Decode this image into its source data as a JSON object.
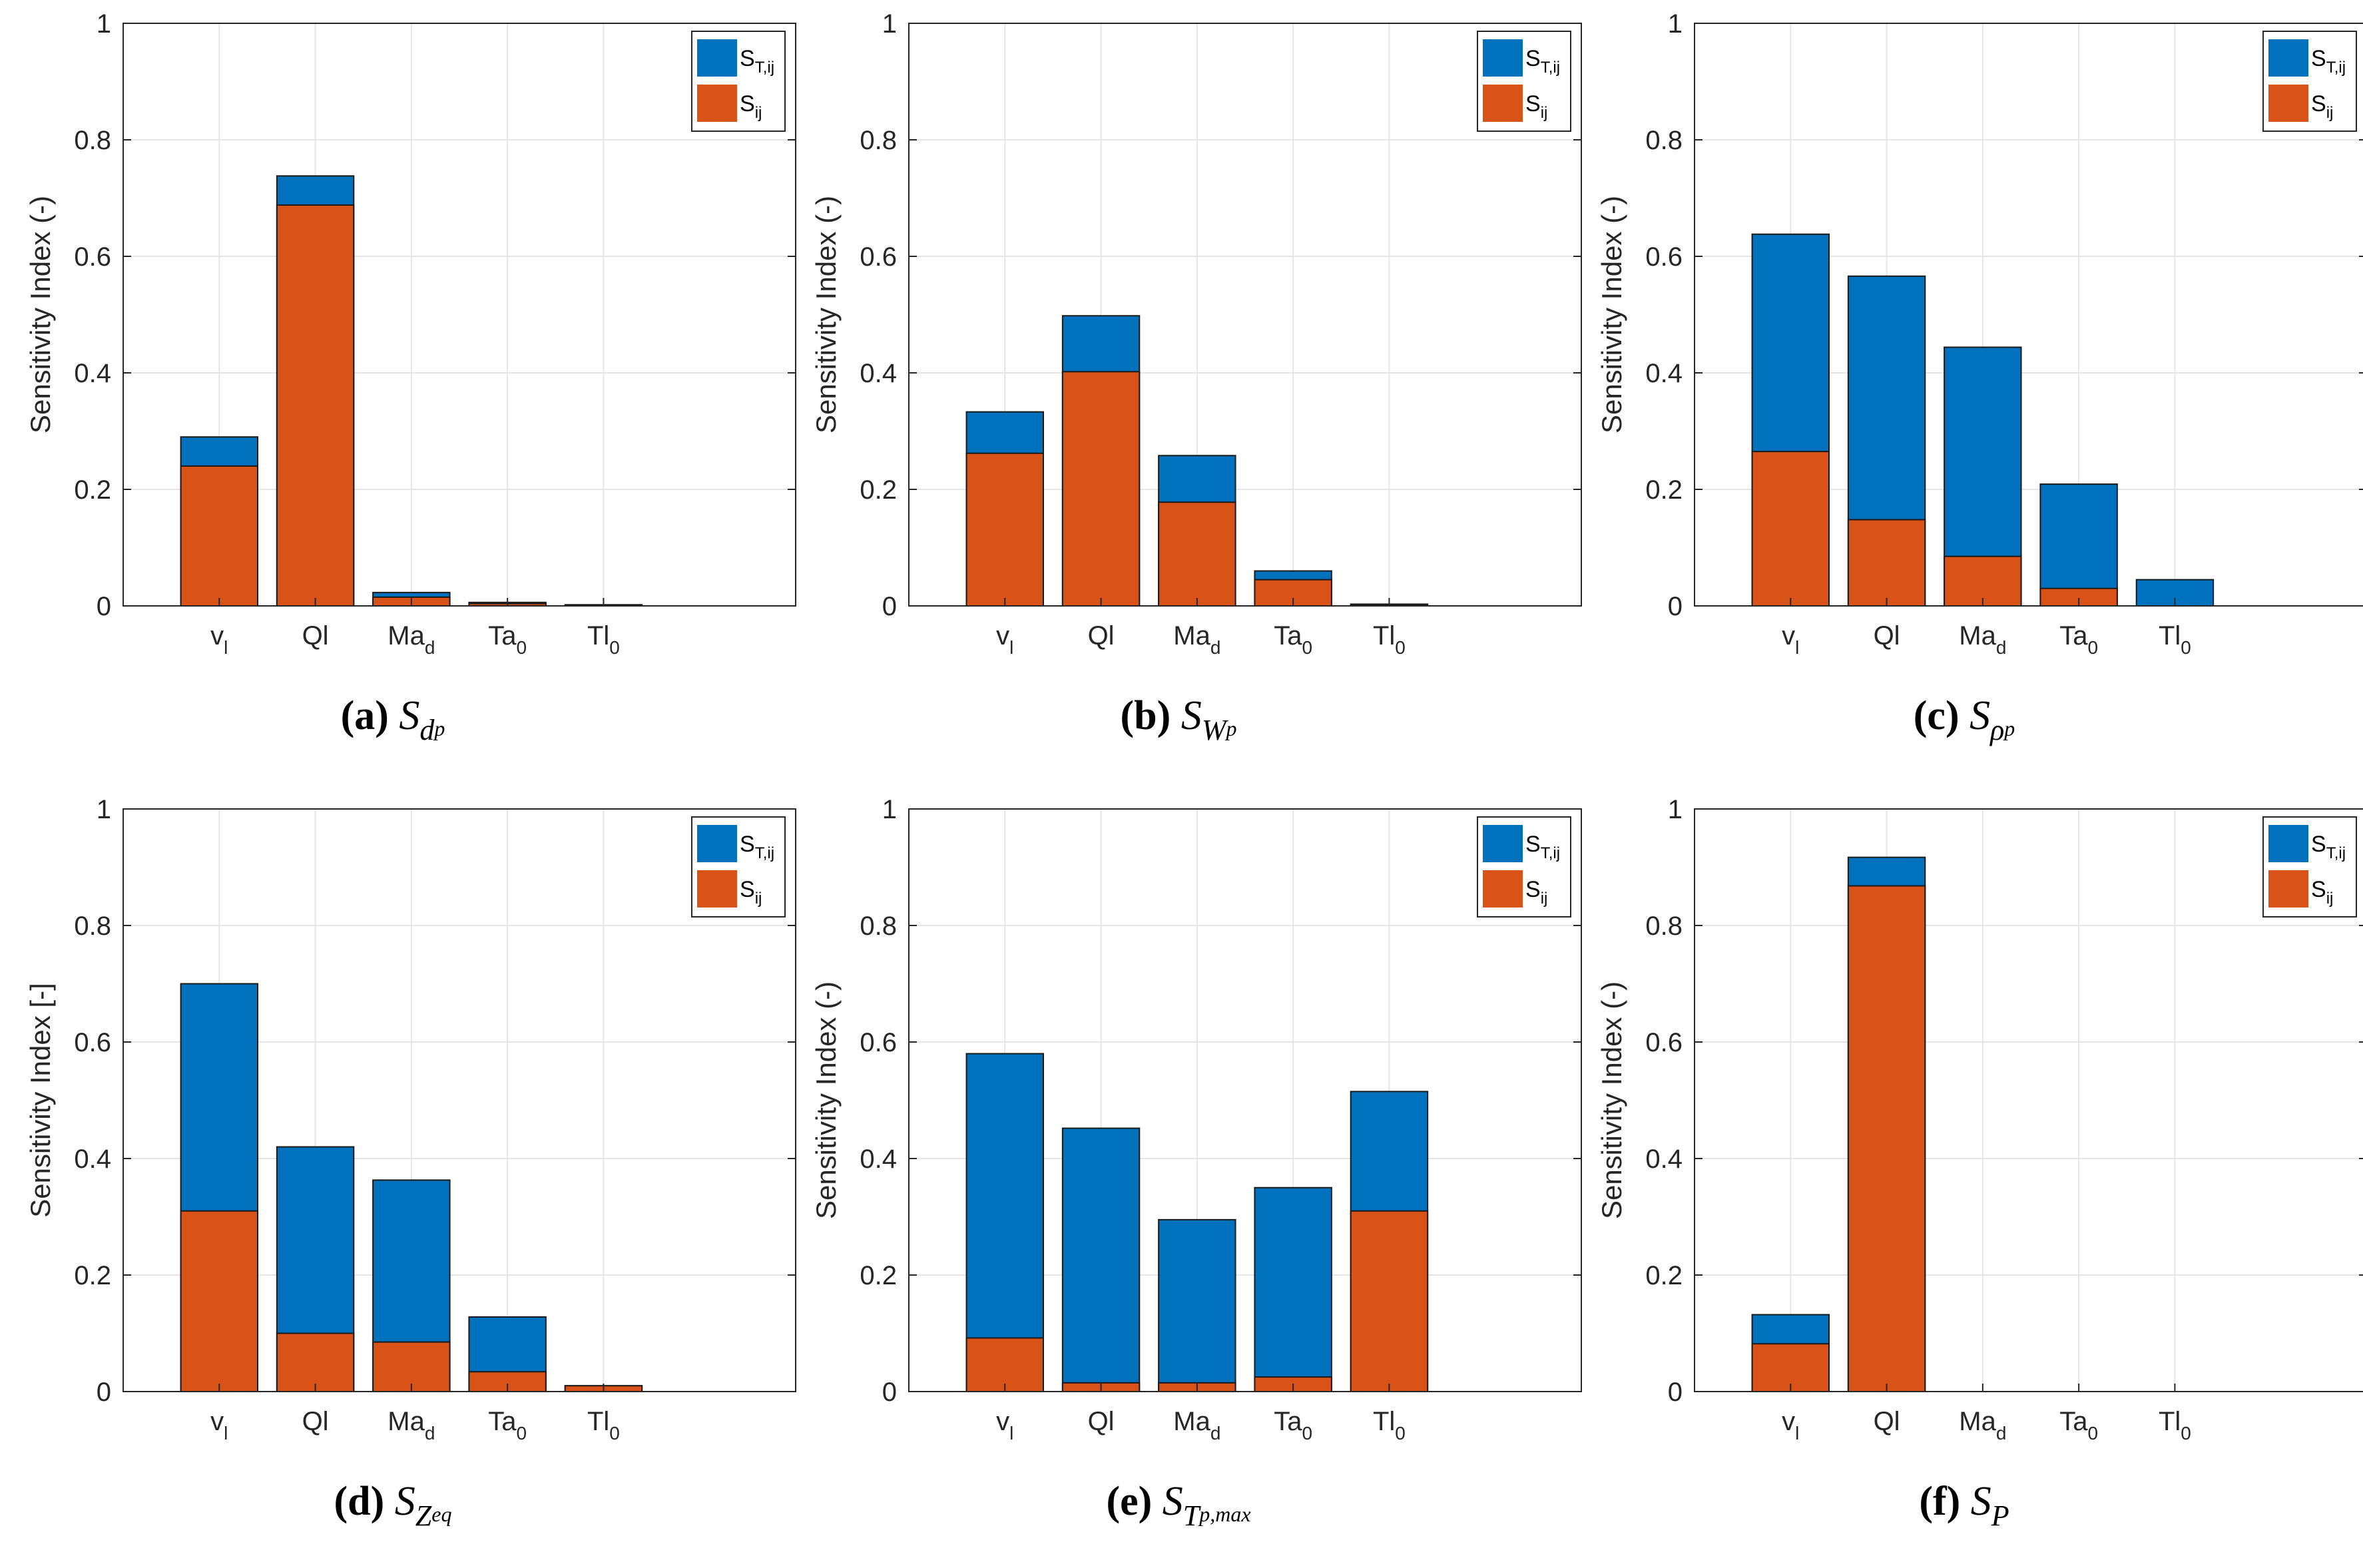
{
  "colors": {
    "total": "#0072BD",
    "first": "#D95319",
    "grid": "#E6E6E6",
    "axis": "#262626",
    "edge": "#1a1a1a"
  },
  "chart_data": [
    {
      "type": "bar",
      "stacked_overlay": true,
      "panel_label": "(a)",
      "caption_symbol": "S",
      "caption_sub": "d",
      "caption_subsub": "p",
      "categories": [
        {
          "main": "v",
          "sub": "l"
        },
        {
          "main": "Ql",
          "sub": ""
        },
        {
          "main": "Ma",
          "sub": "d"
        },
        {
          "main": "Ta",
          "sub": "0"
        },
        {
          "main": "Tl",
          "sub": "0"
        }
      ],
      "ylabel": "Sensitivity Index (-)",
      "ylim": [
        0,
        1
      ],
      "yticks": [
        "0",
        "0.2",
        "0.4",
        "0.6",
        "0.8",
        "1"
      ],
      "grid": true,
      "legend": {
        "position": "top-right",
        "entries": [
          {
            "main": "S",
            "sub": "T,ij"
          },
          {
            "main": "S",
            "sub": "ij"
          }
        ]
      },
      "series": [
        {
          "name": "S_T,ij",
          "values": [
            0.29,
            0.738,
            0.023,
            0.006,
            0.002
          ]
        },
        {
          "name": "S_ij",
          "values": [
            0.24,
            0.688,
            0.015,
            0.004,
            0.001
          ]
        }
      ]
    },
    {
      "type": "bar",
      "stacked_overlay": true,
      "panel_label": "(b)",
      "caption_symbol": "S",
      "caption_sub": "W",
      "caption_subsub": "p",
      "categories": [
        {
          "main": "v",
          "sub": "l"
        },
        {
          "main": "Ql",
          "sub": ""
        },
        {
          "main": "Ma",
          "sub": "d"
        },
        {
          "main": "Ta",
          "sub": "0"
        },
        {
          "main": "Tl",
          "sub": "0"
        }
      ],
      "ylabel": "Sensitivity Index (-)",
      "ylim": [
        0,
        1
      ],
      "yticks": [
        "0",
        "0.2",
        "0.4",
        "0.6",
        "0.8",
        "1"
      ],
      "grid": true,
      "legend": {
        "position": "top-right",
        "entries": [
          {
            "main": "S",
            "sub": "T,ij"
          },
          {
            "main": "S",
            "sub": "ij"
          }
        ]
      },
      "series": [
        {
          "name": "S_T,ij",
          "values": [
            0.333,
            0.498,
            0.258,
            0.06,
            0.003
          ]
        },
        {
          "name": "S_ij",
          "values": [
            0.262,
            0.402,
            0.178,
            0.045,
            0.002
          ]
        }
      ]
    },
    {
      "type": "bar",
      "stacked_overlay": true,
      "panel_label": "(c)",
      "caption_symbol": "S",
      "caption_sub": "ρ",
      "caption_subsub": "p",
      "categories": [
        {
          "main": "v",
          "sub": "l"
        },
        {
          "main": "Ql",
          "sub": ""
        },
        {
          "main": "Ma",
          "sub": "d"
        },
        {
          "main": "Ta",
          "sub": "0"
        },
        {
          "main": "Tl",
          "sub": "0"
        }
      ],
      "ylabel": "Sensitivity Index (-)",
      "ylim": [
        0,
        1
      ],
      "yticks": [
        "0",
        "0.2",
        "0.4",
        "0.6",
        "0.8",
        "1"
      ],
      "grid": true,
      "legend": {
        "position": "top-right",
        "entries": [
          {
            "main": "S",
            "sub": "T,ij"
          },
          {
            "main": "S",
            "sub": "ij"
          }
        ]
      },
      "series": [
        {
          "name": "S_T,ij",
          "values": [
            0.638,
            0.566,
            0.444,
            0.209,
            0.045
          ]
        },
        {
          "name": "S_ij",
          "values": [
            0.265,
            0.148,
            0.085,
            0.03,
            0.0
          ]
        }
      ]
    },
    {
      "type": "bar",
      "stacked_overlay": true,
      "panel_label": "(d)",
      "caption_symbol": "S",
      "caption_sub": "Z",
      "caption_subsub": "eq",
      "categories": [
        {
          "main": "v",
          "sub": "l"
        },
        {
          "main": "Ql",
          "sub": ""
        },
        {
          "main": "Ma",
          "sub": "d"
        },
        {
          "main": "Ta",
          "sub": "0"
        },
        {
          "main": "Tl",
          "sub": "0"
        }
      ],
      "ylabel": "Sensitivity Index [-]",
      "ylim": [
        0,
        1
      ],
      "yticks": [
        "0",
        "0.2",
        "0.4",
        "0.6",
        "0.8",
        "1"
      ],
      "grid": true,
      "legend": {
        "position": "top-right",
        "entries": [
          {
            "main": "S",
            "sub": "T,ij"
          },
          {
            "main": "S",
            "sub": "ij"
          }
        ]
      },
      "series": [
        {
          "name": "S_T,ij",
          "values": [
            0.7,
            0.42,
            0.363,
            0.128,
            0.01
          ]
        },
        {
          "name": "S_ij",
          "values": [
            0.31,
            0.1,
            0.085,
            0.034,
            0.01
          ]
        }
      ]
    },
    {
      "type": "bar",
      "stacked_overlay": true,
      "panel_label": "(e)",
      "caption_symbol": "S",
      "caption_sub": "T",
      "caption_subsub": "p,max",
      "categories": [
        {
          "main": "v",
          "sub": "l"
        },
        {
          "main": "Ql",
          "sub": ""
        },
        {
          "main": "Ma",
          "sub": "d"
        },
        {
          "main": "Ta",
          "sub": "0"
        },
        {
          "main": "Tl",
          "sub": "0"
        }
      ],
      "ylabel": "Sensitivity Index (-)",
      "ylim": [
        0,
        1
      ],
      "yticks": [
        "0",
        "0.2",
        "0.4",
        "0.6",
        "0.8",
        "1"
      ],
      "grid": true,
      "legend": {
        "position": "top-right",
        "entries": [
          {
            "main": "S",
            "sub": "T,ij"
          },
          {
            "main": "S",
            "sub": "ij"
          }
        ]
      },
      "series": [
        {
          "name": "S_T,ij",
          "values": [
            0.58,
            0.452,
            0.295,
            0.35,
            0.515
          ]
        },
        {
          "name": "S_ij",
          "values": [
            0.092,
            0.015,
            0.015,
            0.025,
            0.31
          ]
        }
      ]
    },
    {
      "type": "bar",
      "stacked_overlay": true,
      "panel_label": "(f)",
      "caption_symbol": "S",
      "caption_sub": "P",
      "caption_subsub": "",
      "categories": [
        {
          "main": "v",
          "sub": "l"
        },
        {
          "main": "Ql",
          "sub": ""
        },
        {
          "main": "Ma",
          "sub": "d"
        },
        {
          "main": "Ta",
          "sub": "0"
        },
        {
          "main": "Tl",
          "sub": "0"
        }
      ],
      "ylabel": "Sensitivity Index (-)",
      "ylim": [
        0,
        1
      ],
      "yticks": [
        "0",
        "0.2",
        "0.4",
        "0.6",
        "0.8",
        "1"
      ],
      "grid": true,
      "legend": {
        "position": "top-right",
        "entries": [
          {
            "main": "S",
            "sub": "T,ij"
          },
          {
            "main": "S",
            "sub": "ij"
          }
        ]
      },
      "series": [
        {
          "name": "S_T,ij",
          "values": [
            0.132,
            0.917,
            0,
            0,
            0
          ]
        },
        {
          "name": "S_ij",
          "values": [
            0.082,
            0.868,
            0,
            0,
            0
          ]
        }
      ]
    }
  ]
}
